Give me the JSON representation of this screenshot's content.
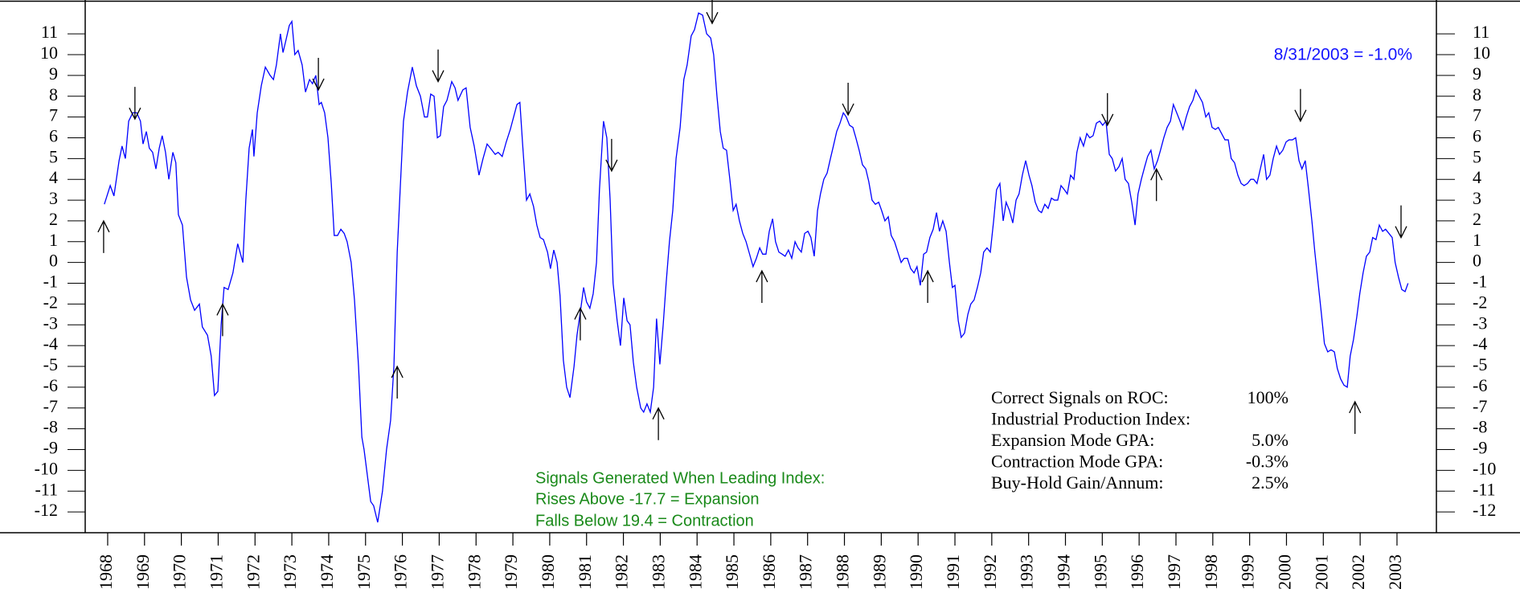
{
  "chart_data": {
    "type": "line",
    "latest_label": "8/31/2003 = -1.0%",
    "signal_note": [
      "Signals Generated When Leading Index:",
      "Rises Above -17.7 = Expansion",
      "Falls Below 19.4 = Contraction"
    ],
    "stats": [
      {
        "label": "Correct Signals on ROC:",
        "value": "100%"
      },
      {
        "label": "Industrial Production Index:"
      },
      {
        "label": "Expansion Mode GPA:",
        "value": "5.0%"
      },
      {
        "label": "Contraction Mode GPA:",
        "value": "-0.3%"
      },
      {
        "label": "Buy-Hold Gain/Annum:",
        "value": "2.5%"
      }
    ],
    "xlim": [
      1967.39,
      2004.07
    ],
    "xticks": [
      1968,
      1969,
      1970,
      1971,
      1972,
      1973,
      1974,
      1975,
      1976,
      1977,
      1978,
      1979,
      1980,
      1981,
      1982,
      1983,
      1984,
      1985,
      1986,
      1987,
      1988,
      1989,
      1990,
      1991,
      1992,
      1993,
      1994,
      1995,
      1996,
      1997,
      1998,
      1999,
      2000,
      2001,
      2002,
      2003
    ],
    "ylim": [
      -13.0,
      12.55
    ],
    "yticks": [
      -12,
      -11,
      -10,
      -9,
      -8,
      -7,
      -6,
      -5,
      -4,
      -3,
      -2,
      -1,
      0,
      1,
      2,
      3,
      4,
      5,
      6,
      7,
      8,
      9,
      10,
      11
    ],
    "x": [
      1967.91,
      1968.07,
      1968.17,
      1968.31,
      1968.39,
      1968.48,
      1968.57,
      1968.68,
      1968.79,
      1968.89,
      1968.96,
      1969.05,
      1969.13,
      1969.22,
      1969.31,
      1969.4,
      1969.48,
      1969.57,
      1969.66,
      1969.77,
      1969.85,
      1969.92,
      1970.03,
      1970.14,
      1970.25,
      1970.36,
      1970.49,
      1970.57,
      1970.71,
      1970.81,
      1970.9,
      1970.99,
      1971.08,
      1971.16,
      1971.27,
      1971.4,
      1971.53,
      1971.67,
      1971.75,
      1971.84,
      1971.93,
      1971.97,
      1972.06,
      1972.17,
      1972.28,
      1972.41,
      1972.5,
      1972.58,
      1972.69,
      1972.76,
      1972.84,
      1972.93,
      1973.0,
      1973.08,
      1973.17,
      1973.28,
      1973.37,
      1973.48,
      1973.56,
      1973.65,
      1973.74,
      1973.8,
      1973.89,
      1973.98,
      1974.07,
      1974.15,
      1974.24,
      1974.33,
      1974.42,
      1974.5,
      1974.61,
      1974.7,
      1974.81,
      1974.9,
      1974.96,
      1975.14,
      1975.22,
      1975.33,
      1975.46,
      1975.57,
      1975.68,
      1975.77,
      1975.86,
      1975.94,
      1976.03,
      1976.14,
      1976.27,
      1976.38,
      1976.49,
      1976.6,
      1976.68,
      1976.77,
      1976.86,
      1976.95,
      1977.03,
      1977.12,
      1977.21,
      1977.34,
      1977.43,
      1977.51,
      1977.64,
      1977.73,
      1977.84,
      1977.95,
      1978.08,
      1978.19,
      1978.3,
      1978.39,
      1978.52,
      1978.6,
      1978.71,
      1978.82,
      1978.93,
      1979.02,
      1979.11,
      1979.19,
      1979.26,
      1979.37,
      1979.46,
      1979.56,
      1979.65,
      1979.74,
      1979.83,
      1979.94,
      1980.02,
      1980.11,
      1980.2,
      1980.28,
      1980.37,
      1980.46,
      1980.55,
      1980.66,
      1980.74,
      1980.83,
      1980.92,
      1981.0,
      1981.09,
      1981.18,
      1981.27,
      1981.35,
      1981.46,
      1981.55,
      1981.64,
      1981.72,
      1981.83,
      1981.92,
      1982.01,
      1982.1,
      1982.18,
      1982.27,
      1982.36,
      1982.47,
      1982.55,
      1982.64,
      1982.73,
      1982.82,
      1982.9,
      1982.99,
      1983.08,
      1983.16,
      1983.25,
      1983.34,
      1983.43,
      1983.54,
      1983.64,
      1983.73,
      1983.84,
      1983.93,
      1984.04,
      1984.15,
      1984.26,
      1984.37,
      1984.45,
      1984.54,
      1984.63,
      1984.71,
      1984.8,
      1984.89,
      1984.98,
      1985.06,
      1985.15,
      1985.24,
      1985.33,
      1985.41,
      1985.52,
      1985.61,
      1985.7,
      1985.78,
      1985.87,
      1985.96,
      1986.05,
      1986.13,
      1986.22,
      1986.31,
      1986.39,
      1986.48,
      1986.57,
      1986.66,
      1986.74,
      1986.83,
      1986.92,
      1987.01,
      1987.09,
      1987.18,
      1987.27,
      1987.35,
      1987.44,
      1987.53,
      1987.62,
      1987.7,
      1987.79,
      1987.88,
      1987.97,
      1988.05,
      1988.14,
      1988.23,
      1988.31,
      1988.4,
      1988.49,
      1988.58,
      1988.66,
      1988.75,
      1988.84,
      1988.93,
      1989.01,
      1989.1,
      1989.19,
      1989.27,
      1989.36,
      1989.45,
      1989.54,
      1989.62,
      1989.71,
      1989.8,
      1989.89,
      1989.97,
      1990.06,
      1990.15,
      1990.23,
      1990.32,
      1990.41,
      1990.5,
      1990.58,
      1990.67,
      1990.76,
      1990.85,
      1990.93,
      1991.0,
      1991.09,
      1991.17,
      1991.26,
      1991.35,
      1991.43,
      1991.52,
      1991.61,
      1991.7,
      1991.78,
      1991.87,
      1991.96,
      1992.05,
      1992.13,
      1992.22,
      1992.31,
      1992.39,
      1992.48,
      1992.57,
      1992.66,
      1992.74,
      1992.83,
      1992.92,
      1993.01,
      1993.09,
      1993.18,
      1993.27,
      1993.35,
      1993.44,
      1993.53,
      1993.62,
      1993.7,
      1993.79,
      1993.88,
      1993.97,
      1994.05,
      1994.14,
      1994.23,
      1994.31,
      1994.4,
      1994.49,
      1994.58,
      1994.66,
      1994.75,
      1994.84,
      1994.93,
      1995.01,
      1995.1,
      1995.19,
      1995.27,
      1995.36,
      1995.45,
      1995.54,
      1995.62,
      1995.71,
      1995.8,
      1995.89,
      1995.97,
      1996.06,
      1996.15,
      1996.23,
      1996.32,
      1996.41,
      1996.5,
      1996.58,
      1996.67,
      1996.76,
      1996.85,
      1996.93,
      1997.02,
      1997.11,
      1997.19,
      1997.28,
      1997.37,
      1997.46,
      1997.54,
      1997.63,
      1997.72,
      1997.81,
      1997.89,
      1997.98,
      1998.07,
      1998.15,
      1998.24,
      1998.33,
      1998.42,
      1998.5,
      1998.59,
      1998.68,
      1998.77,
      1998.85,
      1998.94,
      1999.03,
      1999.11,
      1999.2,
      1999.29,
      1999.38,
      1999.46,
      1999.55,
      1999.64,
      1999.73,
      1999.81,
      1999.9,
      1999.99,
      2000.07,
      2000.16,
      2000.25,
      2000.34,
      2000.42,
      2000.51,
      2000.6,
      2000.69,
      2000.77,
      2000.86,
      2000.95,
      2001.03,
      2001.12,
      2001.21,
      2001.3,
      2001.38,
      2001.47,
      2001.56,
      2001.65,
      2001.73,
      2001.82,
      2001.91,
      2001.99,
      2002.08,
      2002.17,
      2002.26,
      2002.34,
      2002.43,
      2002.52,
      2002.61,
      2002.69,
      2002.78,
      2002.87,
      2002.95,
      2003.04,
      2003.13,
      2003.22,
      2003.3
    ],
    "series": [
      {
        "color": "#0000ff",
        "values": [
          2.8,
          3.7,
          3.2,
          4.9,
          5.6,
          5.0,
          6.8,
          7.2,
          7.2,
          6.8,
          5.7,
          6.3,
          5.5,
          5.3,
          4.5,
          5.5,
          6.1,
          5.3,
          4.0,
          5.3,
          4.8,
          2.3,
          1.8,
          -0.7,
          -1.8,
          -2.3,
          -2.0,
          -3.1,
          -3.5,
          -4.5,
          -6.4,
          -6.2,
          -3.0,
          -1.2,
          -1.3,
          -0.5,
          0.9,
          0.0,
          3.0,
          5.5,
          6.4,
          5.1,
          7.2,
          8.5,
          9.4,
          9.0,
          8.8,
          9.5,
          11.0,
          10.1,
          10.7,
          11.4,
          11.6,
          10.0,
          10.2,
          9.5,
          8.2,
          8.8,
          8.6,
          9.0,
          7.6,
          7.7,
          7.2,
          6.0,
          3.8,
          1.3,
          1.3,
          1.6,
          1.4,
          1.0,
          0.0,
          -1.8,
          -5.0,
          -8.4,
          -9.0,
          -11.5,
          -11.7,
          -12.5,
          -11.0,
          -9.0,
          -7.6,
          -5.0,
          0.5,
          3.5,
          6.8,
          8.2,
          9.4,
          8.5,
          8.0,
          7.0,
          7.0,
          8.1,
          8.0,
          6.0,
          6.1,
          7.5,
          7.8,
          8.7,
          8.4,
          7.8,
          8.3,
          8.4,
          6.5,
          5.6,
          4.2,
          5.0,
          5.7,
          5.5,
          5.2,
          5.3,
          5.1,
          5.8,
          6.4,
          7.0,
          7.6,
          7.7,
          5.8,
          3.0,
          3.3,
          2.7,
          1.8,
          1.2,
          1.1,
          0.5,
          -0.3,
          0.6,
          0.0,
          -1.6,
          -4.7,
          -6.0,
          -6.5,
          -5.0,
          -3.5,
          -2.4,
          -1.2,
          -1.9,
          -2.2,
          -1.5,
          0.0,
          3.5,
          6.8,
          6.0,
          3.0,
          -1.0,
          -2.8,
          -4.0,
          -1.7,
          -2.8,
          -3.0,
          -4.8,
          -6.0,
          -7.0,
          -7.2,
          -6.8,
          -7.2,
          -6.0,
          -2.7,
          -4.9,
          -3.0,
          -1.0,
          1.0,
          2.5,
          5.0,
          6.5,
          8.8,
          9.5,
          10.9,
          11.2,
          12.0,
          11.9,
          11.0,
          10.8,
          10.0,
          8.0,
          6.3,
          5.5,
          5.4,
          4.0,
          2.5,
          2.8,
          2.0,
          1.4,
          1.0,
          0.5,
          -0.2,
          0.2,
          0.7,
          0.4,
          0.4,
          1.5,
          2.1,
          1.0,
          0.5,
          0.4,
          0.3,
          0.6,
          0.2,
          1.0,
          0.7,
          0.5,
          1.4,
          1.5,
          1.2,
          0.3,
          2.5,
          3.3,
          4.0,
          4.3,
          5.0,
          5.6,
          6.3,
          6.7,
          7.2,
          7.0,
          6.6,
          6.5,
          6.0,
          5.4,
          4.7,
          4.5,
          3.9,
          3.0,
          2.8,
          2.9,
          2.5,
          2.0,
          2.2,
          1.3,
          1.0,
          0.5,
          0.0,
          0.2,
          0.2,
          -0.3,
          -0.5,
          -0.2,
          -1.1,
          0.4,
          0.5,
          1.2,
          1.6,
          2.4,
          1.5,
          2.0,
          1.5,
          0.0,
          -1.2,
          -1.1,
          -2.8,
          -3.6,
          -3.4,
          -2.5,
          -2.0,
          -1.8,
          -1.2,
          -0.5,
          0.5,
          0.7,
          0.5,
          2.0,
          3.5,
          3.8,
          2.0,
          2.9,
          2.5,
          1.9,
          3.0,
          3.3,
          4.2,
          4.9,
          4.2,
          3.7,
          2.9,
          2.5,
          2.4,
          2.8,
          2.6,
          3.1,
          3.0,
          3.0,
          3.7,
          3.5,
          3.3,
          4.2,
          4.0,
          5.3,
          6.0,
          5.6,
          6.2,
          6.0,
          6.1,
          6.7,
          6.8,
          6.6,
          6.8,
          5.2,
          5.0,
          4.4,
          4.6,
          5.0,
          4.0,
          3.8,
          2.9,
          1.8,
          3.3,
          4.0,
          4.6,
          5.1,
          5.4,
          4.5,
          4.9,
          5.4,
          6.0,
          6.5,
          6.8,
          7.6,
          7.2,
          6.8,
          6.4,
          7.0,
          7.5,
          7.8,
          8.3,
          8.0,
          7.7,
          7.0,
          7.2,
          6.5,
          6.4,
          6.5,
          6.2,
          5.9,
          5.9,
          5.0,
          4.8,
          4.2,
          3.8,
          3.7,
          3.8,
          4.0,
          4.0,
          3.8,
          4.5,
          5.2,
          4.0,
          4.2,
          5.0,
          5.6,
          5.2,
          5.4,
          5.8,
          5.9,
          5.9,
          6.0,
          4.9,
          4.5,
          4.9,
          3.5,
          2.0,
          0.5,
          -1.0,
          -2.5,
          -3.9,
          -4.3,
          -4.2,
          -4.3,
          -5.1,
          -5.6,
          -5.9,
          -6.0,
          -4.5,
          -3.7,
          -2.6,
          -1.5,
          -0.5,
          0.3,
          0.5,
          1.2,
          1.1,
          1.8,
          1.5,
          1.6,
          1.4,
          1.2,
          0.0,
          -0.7,
          -1.3,
          -1.4,
          -1.0
        ]
      }
    ],
    "expansion_signals": {
      "x": [
        1967.89,
        1971.12,
        1975.86,
        1980.83,
        1982.95,
        1985.76,
        1990.26,
        1996.47,
        2001.86
      ],
      "y": [
        2.0,
        -2.0,
        -5.0,
        -2.2,
        -7.0,
        -0.4,
        -0.4,
        4.5,
        -6.7
      ]
    },
    "contraction_signals": {
      "x": [
        1968.74,
        1973.72,
        1976.97,
        1981.68,
        1984.41,
        1988.1,
        1995.14,
        2000.38,
        2003.11
      ],
      "y": [
        6.9,
        8.3,
        8.7,
        4.4,
        11.5,
        7.1,
        6.6,
        6.8,
        1.2
      ]
    }
  }
}
